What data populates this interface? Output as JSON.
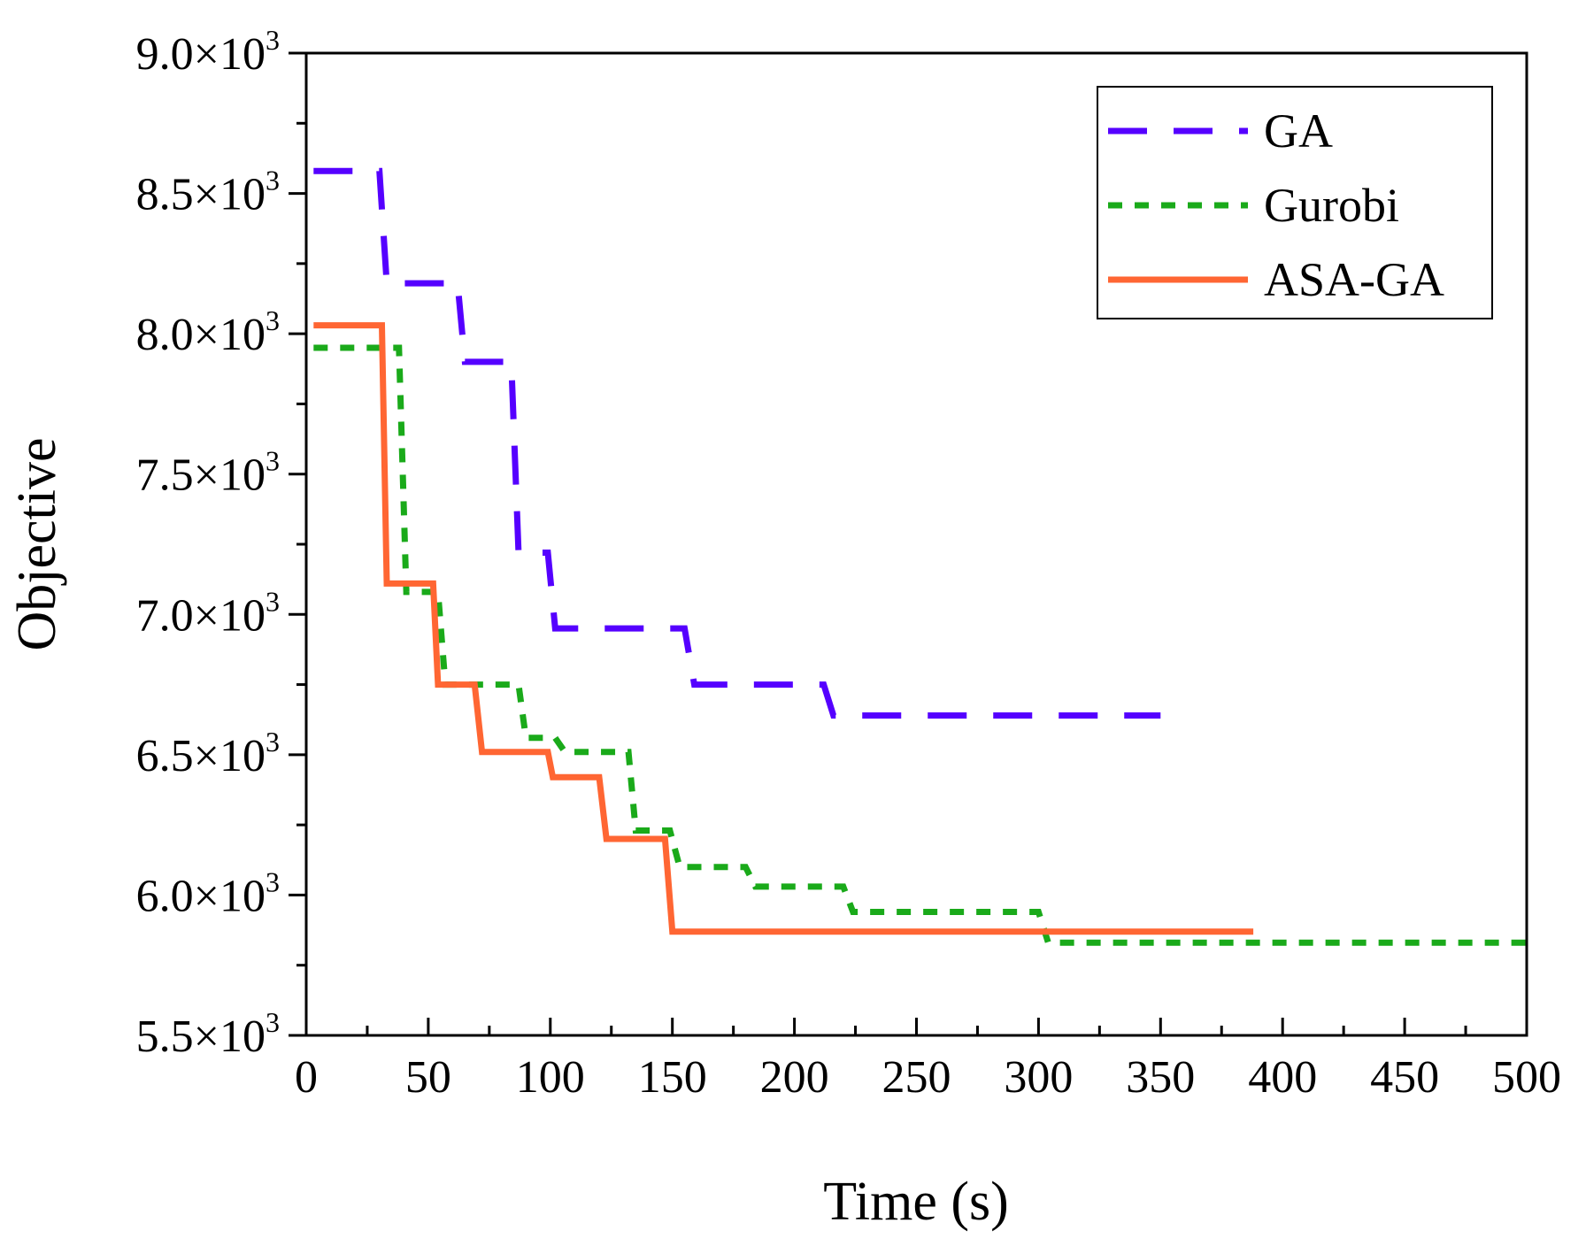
{
  "chart_data": {
    "type": "line",
    "title": "",
    "xlabel": "Time (s)",
    "ylabel": "Objective",
    "xlim": [
      0,
      500
    ],
    "ylim": [
      5500,
      9000
    ],
    "grid": false,
    "legend_position": "top-right",
    "x_ticks": [
      0,
      50,
      100,
      150,
      200,
      250,
      300,
      350,
      400,
      450,
      500
    ],
    "x_tick_labels": [
      "0",
      "50",
      "100",
      "150",
      "200",
      "250",
      "300",
      "350",
      "400",
      "450",
      "500"
    ],
    "y_ticks": [
      5500,
      6000,
      6500,
      7000,
      7500,
      8000,
      8500,
      9000
    ],
    "y_tick_labels": [
      "5.5×10",
      "6.0×10",
      "6.5×10",
      "7.0×10",
      "7.5×10",
      "8.0×10",
      "8.5×10",
      "9.0×10"
    ],
    "y_tick_exponent": "3",
    "series": [
      {
        "name": "GA",
        "color": "#5500ff",
        "style": "dash",
        "x": [
          3,
          30,
          33,
          62,
          65,
          84,
          87,
          99,
          102,
          155,
          159,
          212,
          216,
          350
        ],
        "y": [
          8580,
          8580,
          8180,
          8180,
          7900,
          7900,
          7220,
          7220,
          6950,
          6950,
          6750,
          6750,
          6640,
          6640
        ]
      },
      {
        "name": "Gurobi",
        "color": "#1aaa1a",
        "style": "dot",
        "x": [
          3,
          38,
          41,
          54,
          57,
          87,
          90,
          102,
          106,
          132,
          135,
          149,
          153,
          180,
          184,
          220,
          224,
          300,
          304,
          500
        ],
        "y": [
          7950,
          7950,
          7080,
          7080,
          6750,
          6750,
          6560,
          6560,
          6510,
          6510,
          6230,
          6230,
          6100,
          6100,
          6030,
          6030,
          5940,
          5940,
          5830,
          5830
        ]
      },
      {
        "name": "ASA-GA",
        "color": "#ff6633",
        "style": "solid",
        "x": [
          3,
          31,
          33,
          52,
          54,
          69,
          72,
          99,
          101,
          120,
          123,
          147,
          150,
          388
        ],
        "y": [
          8030,
          8030,
          7110,
          7110,
          6750,
          6750,
          6510,
          6510,
          6420,
          6420,
          6200,
          6200,
          5870,
          5870
        ]
      }
    ]
  }
}
